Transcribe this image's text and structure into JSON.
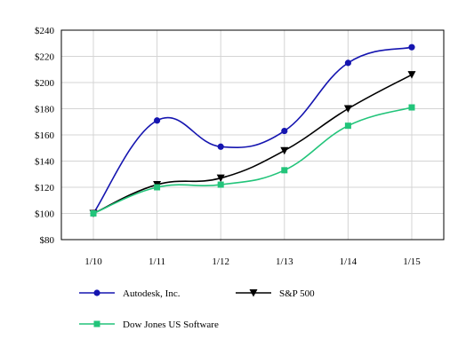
{
  "chart_data": {
    "type": "line",
    "title": "",
    "xlabel": "",
    "ylabel": "",
    "categories": [
      "1/10",
      "1/11",
      "1/12",
      "1/13",
      "1/14",
      "1/15"
    ],
    "y_ticks": [
      "$80",
      "$100",
      "$120",
      "$140",
      "$160",
      "$180",
      "$200",
      "$220",
      "$240"
    ],
    "ylim": [
      80,
      240
    ],
    "y_step": 20,
    "grid": true,
    "legend_position": "bottom",
    "series": [
      {
        "name": "Autodesk, Inc.",
        "color": "#1515b0",
        "marker": "circle",
        "values": [
          100,
          171,
          151,
          163,
          215,
          227
        ]
      },
      {
        "name": "S&P 500",
        "color": "#000000",
        "marker": "triangle-down",
        "values": [
          100,
          122,
          127,
          148,
          180,
          206
        ]
      },
      {
        "name": "Dow Jones US Software",
        "color": "#22c47a",
        "marker": "square",
        "values": [
          100,
          120,
          122,
          133,
          167,
          181
        ]
      }
    ]
  }
}
